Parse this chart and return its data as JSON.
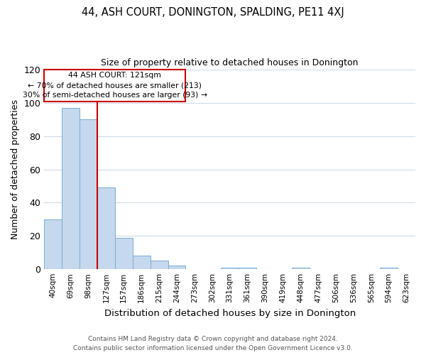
{
  "title": "44, ASH COURT, DONINGTON, SPALDING, PE11 4XJ",
  "subtitle": "Size of property relative to detached houses in Donington",
  "xlabel": "Distribution of detached houses by size in Donington",
  "ylabel": "Number of detached properties",
  "bar_labels": [
    "40sqm",
    "69sqm",
    "98sqm",
    "127sqm",
    "157sqm",
    "186sqm",
    "215sqm",
    "244sqm",
    "273sqm",
    "302sqm",
    "331sqm",
    "361sqm",
    "390sqm",
    "419sqm",
    "448sqm",
    "477sqm",
    "506sqm",
    "536sqm",
    "565sqm",
    "594sqm",
    "623sqm"
  ],
  "bar_values": [
    30,
    97,
    90,
    49,
    19,
    8,
    5,
    2,
    0,
    0,
    1,
    1,
    0,
    0,
    1,
    0,
    0,
    0,
    0,
    1,
    0
  ],
  "bar_color": "#c5d8ed",
  "bar_edge_color": "#7aadd4",
  "vline_color": "#cc0000",
  "annotation_line1": "44 ASH COURT: 121sqm",
  "annotation_line2": "← 70% of detached houses are smaller (213)",
  "annotation_line3": "30% of semi-detached houses are larger (93) →",
  "annotation_box_edge": "#cc0000",
  "ylim": [
    0,
    120
  ],
  "yticks": [
    0,
    20,
    40,
    60,
    80,
    100,
    120
  ],
  "footer_line1": "Contains HM Land Registry data © Crown copyright and database right 2024.",
  "footer_line2": "Contains public sector information licensed under the Open Government Licence v3.0.",
  "background_color": "#ffffff",
  "grid_color": "#d0dce8"
}
